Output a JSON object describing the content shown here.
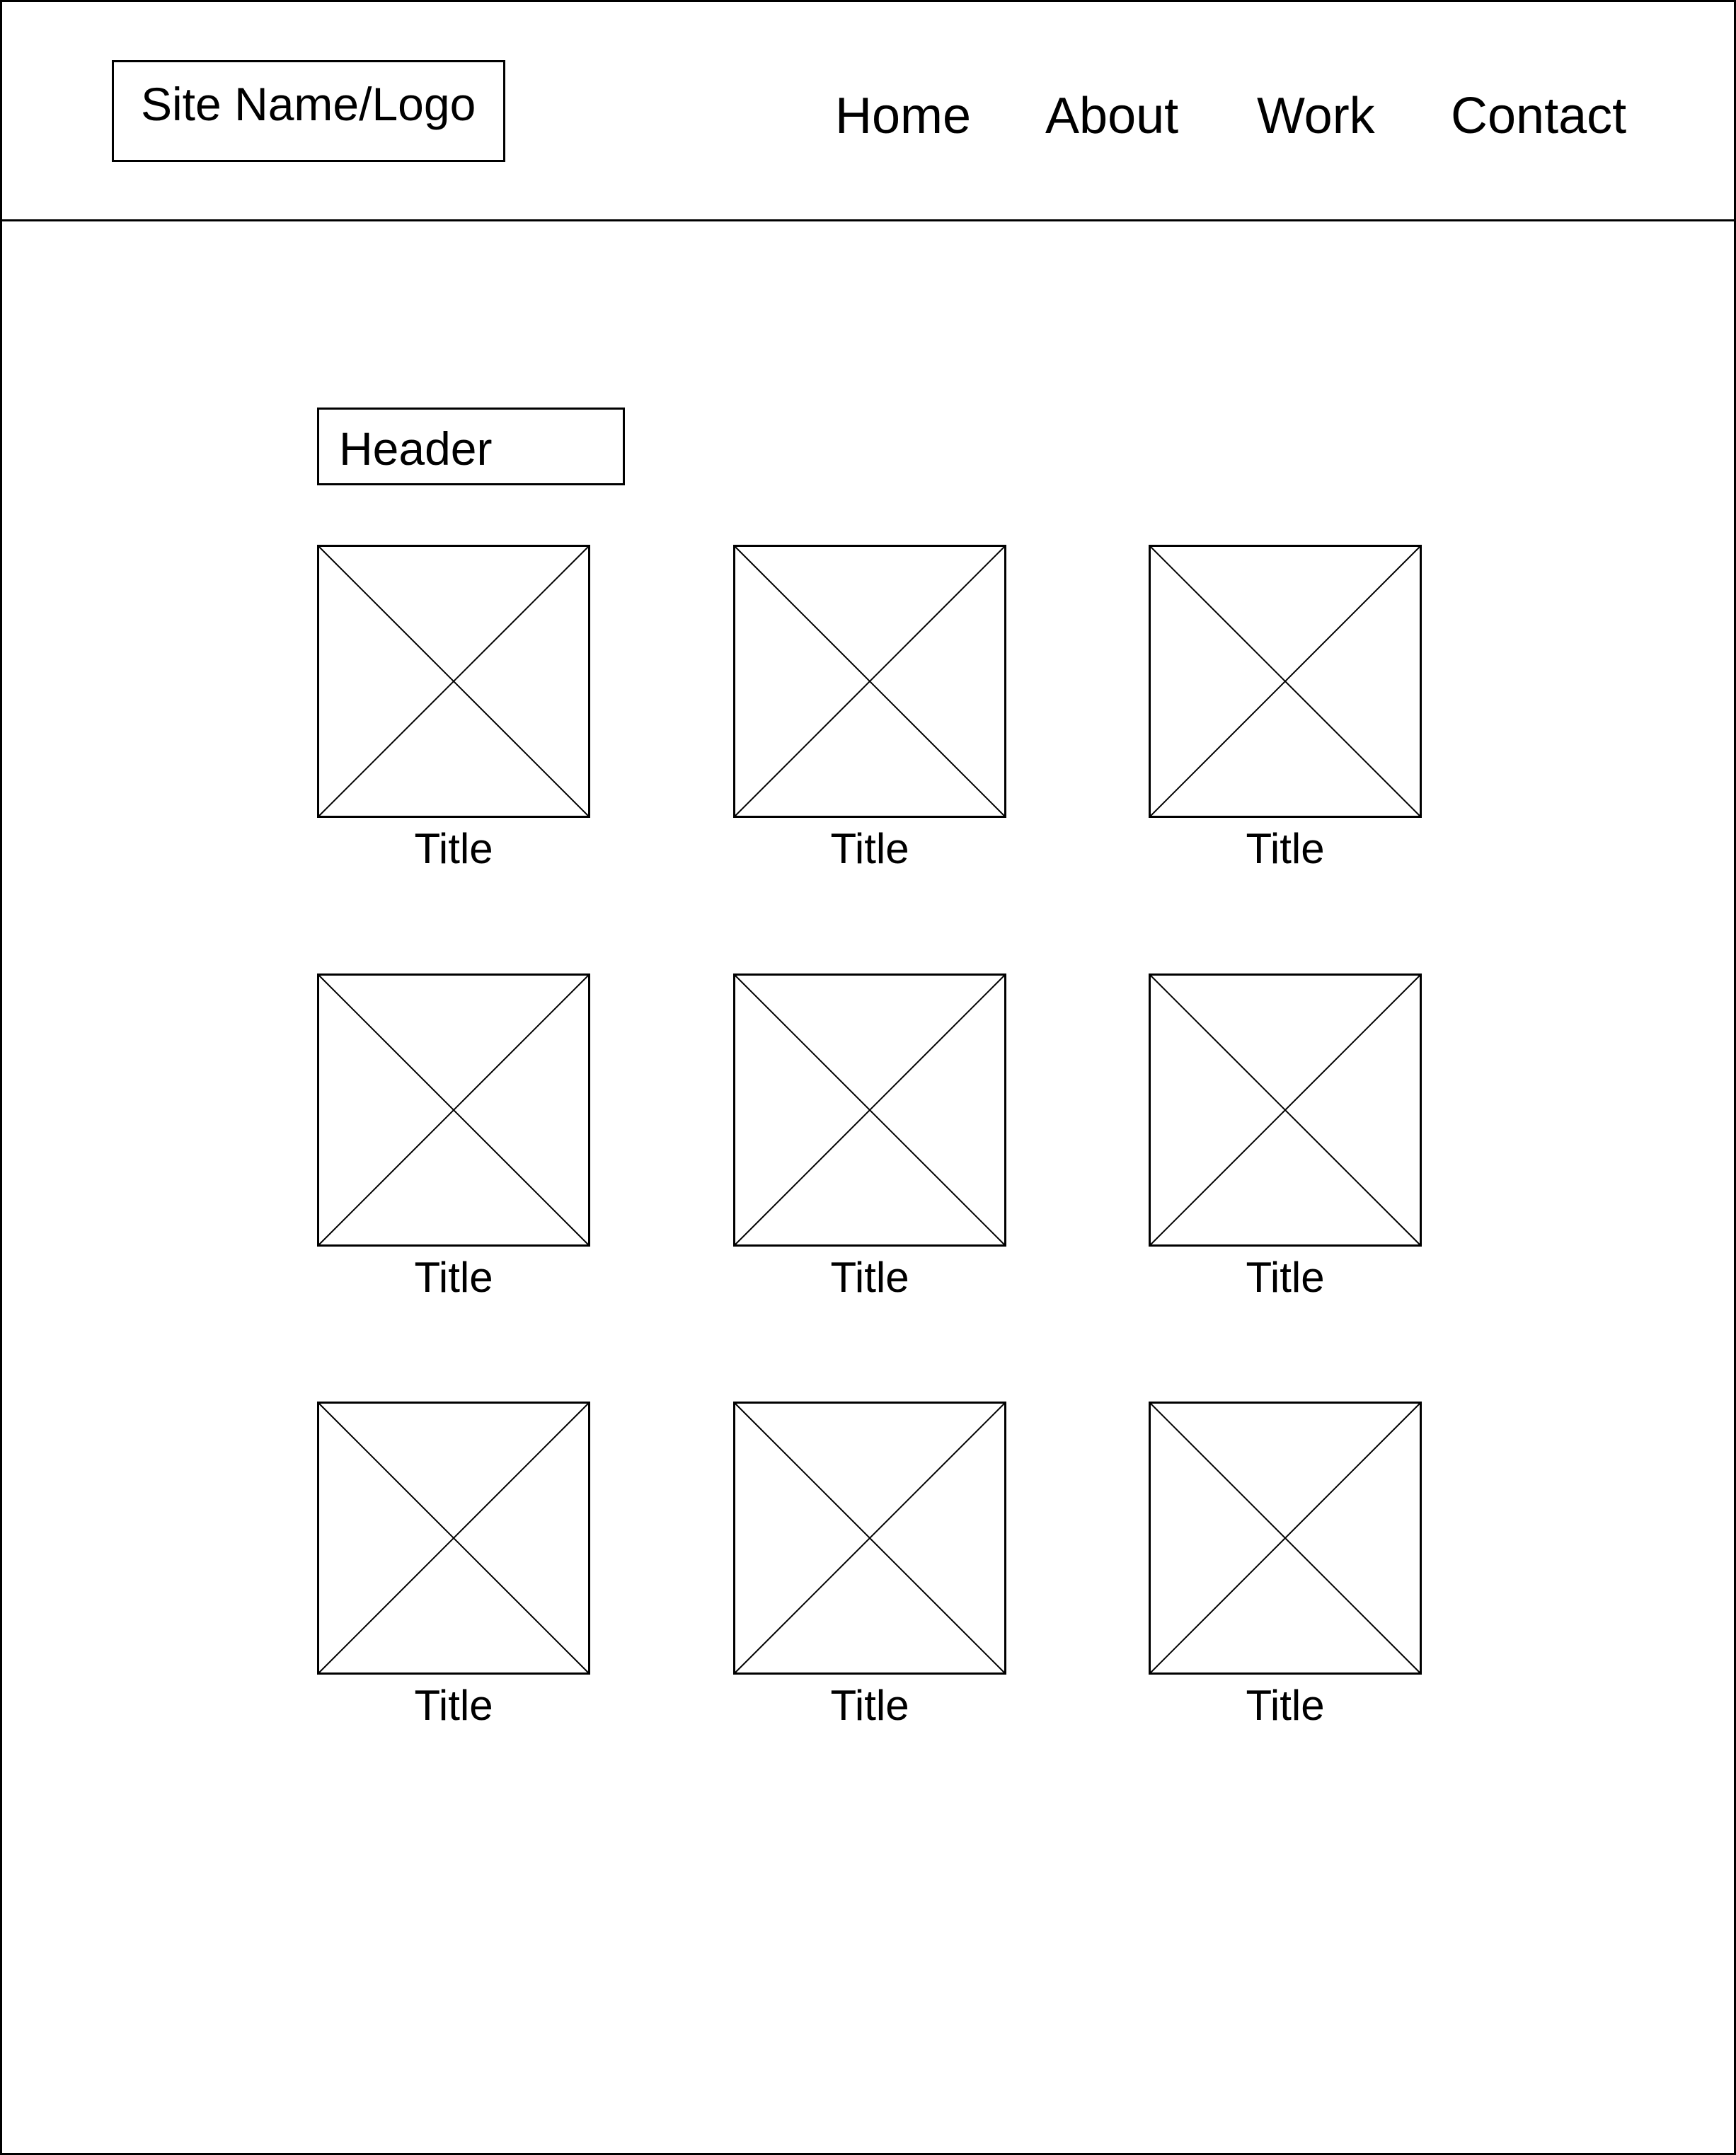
{
  "site": {
    "logo_label": "Site Name/Logo"
  },
  "nav": {
    "home": "Home",
    "about": "About",
    "work": "Work",
    "contact": "Contact"
  },
  "main": {
    "header_label": "Header",
    "cards": [
      {
        "title": "Title",
        "image": "image-placeholder-icon"
      },
      {
        "title": "Title",
        "image": "image-placeholder-icon"
      },
      {
        "title": "Title",
        "image": "image-placeholder-icon"
      },
      {
        "title": "Title",
        "image": "image-placeholder-icon"
      },
      {
        "title": "Title",
        "image": "image-placeholder-icon"
      },
      {
        "title": "Title",
        "image": "image-placeholder-icon"
      },
      {
        "title": "Title",
        "image": "image-placeholder-icon"
      },
      {
        "title": "Title",
        "image": "image-placeholder-icon"
      },
      {
        "title": "Title",
        "image": "image-placeholder-icon"
      }
    ]
  },
  "colors": {
    "line": "#000000",
    "background": "#ffffff"
  }
}
